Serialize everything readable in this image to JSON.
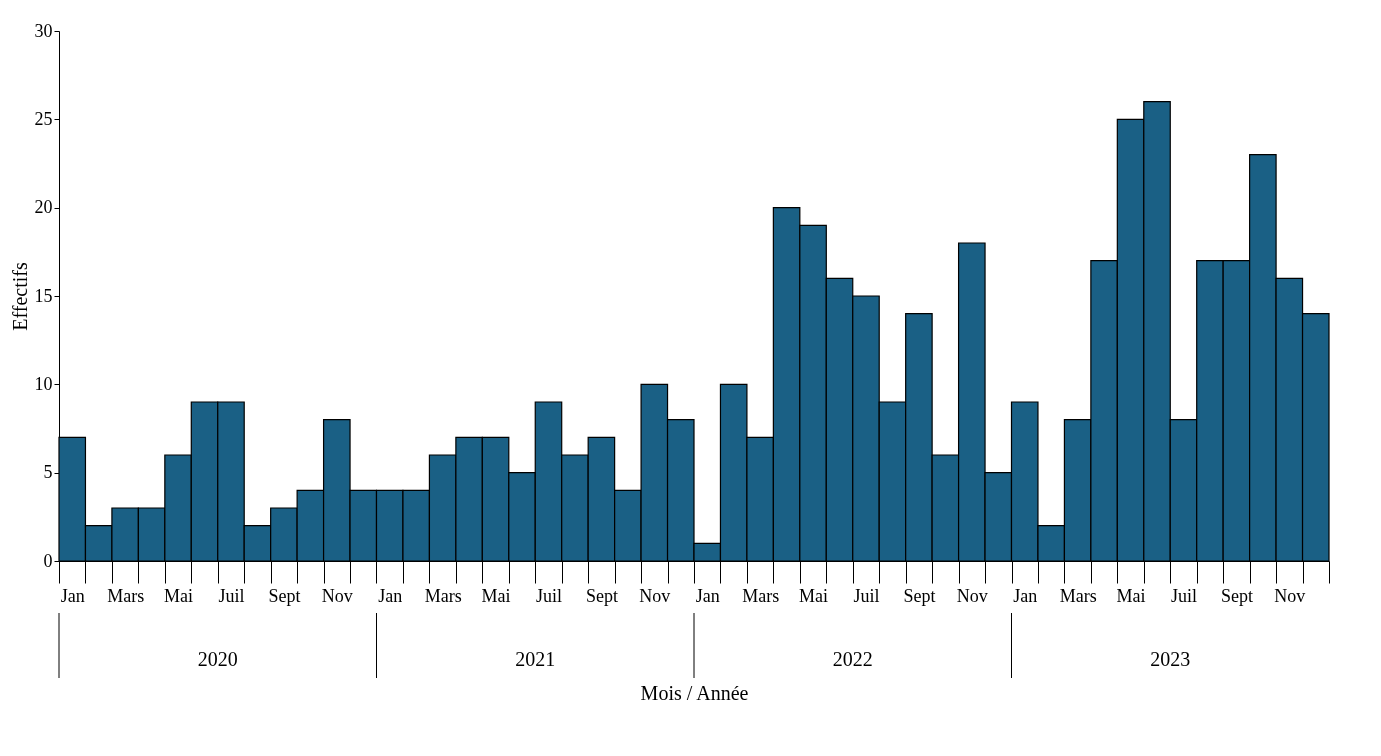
{
  "chart_data": {
    "type": "bar",
    "xlabel": "Mois / Année",
    "ylabel": "Effectifs",
    "categories": [
      "Jan",
      null,
      "Mars",
      null,
      "Mai",
      null,
      "Juil",
      null,
      "Sept",
      null,
      "Nov",
      null,
      "Jan",
      null,
      "Mars",
      null,
      "Mai",
      null,
      "Juil",
      null,
      "Sept",
      null,
      "Nov",
      null,
      "Jan",
      null,
      "Mars",
      null,
      "Mai",
      null,
      "Juil",
      null,
      "Sept",
      null,
      "Nov",
      null,
      "Jan",
      null,
      "Mars",
      null,
      "Mai",
      null,
      "Juil",
      null,
      "Sept",
      null,
      "Nov",
      null
    ],
    "values": [
      7,
      2,
      3,
      3,
      6,
      9,
      9,
      2,
      3,
      4,
      8,
      4,
      4,
      4,
      6,
      7,
      7,
      5,
      9,
      6,
      7,
      4,
      10,
      8,
      1,
      10,
      7,
      20,
      19,
      16,
      15,
      9,
      14,
      6,
      18,
      5,
      9,
      2,
      8,
      17,
      25,
      26,
      8,
      17,
      17,
      23,
      16,
      14
    ],
    "color": "#1a6085",
    "ylim": [
      0,
      30
    ],
    "yticks": [
      0,
      5,
      10,
      15,
      20,
      25,
      30
    ],
    "grid": false,
    "annotations": [
      "2020",
      "2021",
      "2022",
      "2023"
    ]
  }
}
